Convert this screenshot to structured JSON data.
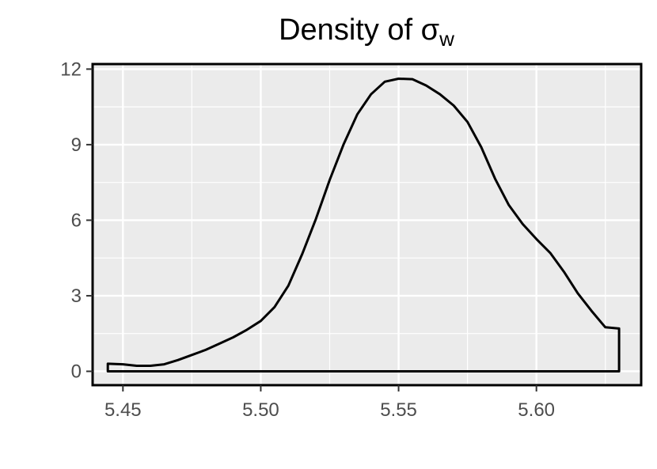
{
  "chart_data": {
    "type": "area",
    "title": "Density of σ",
    "title_subscript": "w",
    "xlabel": "",
    "ylabel": "",
    "xlim": [
      5.439,
      5.638
    ],
    "ylim": [
      -0.55,
      12.2
    ],
    "x_ticks": [
      "5.45",
      "5.50",
      "5.55",
      "5.60"
    ],
    "y_ticks": [
      "0",
      "3",
      "6",
      "9",
      "12"
    ],
    "grid": true,
    "legend": "none",
    "colors": {
      "panel": "#ebebeb",
      "grid": "#ffffff",
      "line": "#000000",
      "tick_text": "#4d4d4d"
    },
    "series": [
      {
        "x": [
          5.4445,
          5.45,
          5.455,
          5.46,
          5.465,
          5.47,
          5.475,
          5.48,
          5.485,
          5.49,
          5.495,
          5.5,
          5.505,
          5.51,
          5.515,
          5.52,
          5.525,
          5.53,
          5.535,
          5.54,
          5.545,
          5.55,
          5.555,
          5.56,
          5.565,
          5.57,
          5.575,
          5.58,
          5.585,
          5.59,
          5.595,
          5.6,
          5.605,
          5.61,
          5.615,
          5.62,
          5.625,
          5.63
        ],
        "y": [
          0.3,
          0.28,
          0.22,
          0.22,
          0.28,
          0.45,
          0.65,
          0.85,
          1.1,
          1.35,
          1.65,
          2.0,
          2.55,
          3.4,
          4.65,
          6.05,
          7.6,
          9.0,
          10.2,
          11.0,
          11.5,
          11.62,
          11.6,
          11.35,
          11.0,
          10.55,
          9.9,
          8.9,
          7.65,
          6.6,
          5.85,
          5.25,
          4.7,
          3.95,
          3.1,
          2.4,
          1.75,
          1.7
        ]
      }
    ]
  }
}
